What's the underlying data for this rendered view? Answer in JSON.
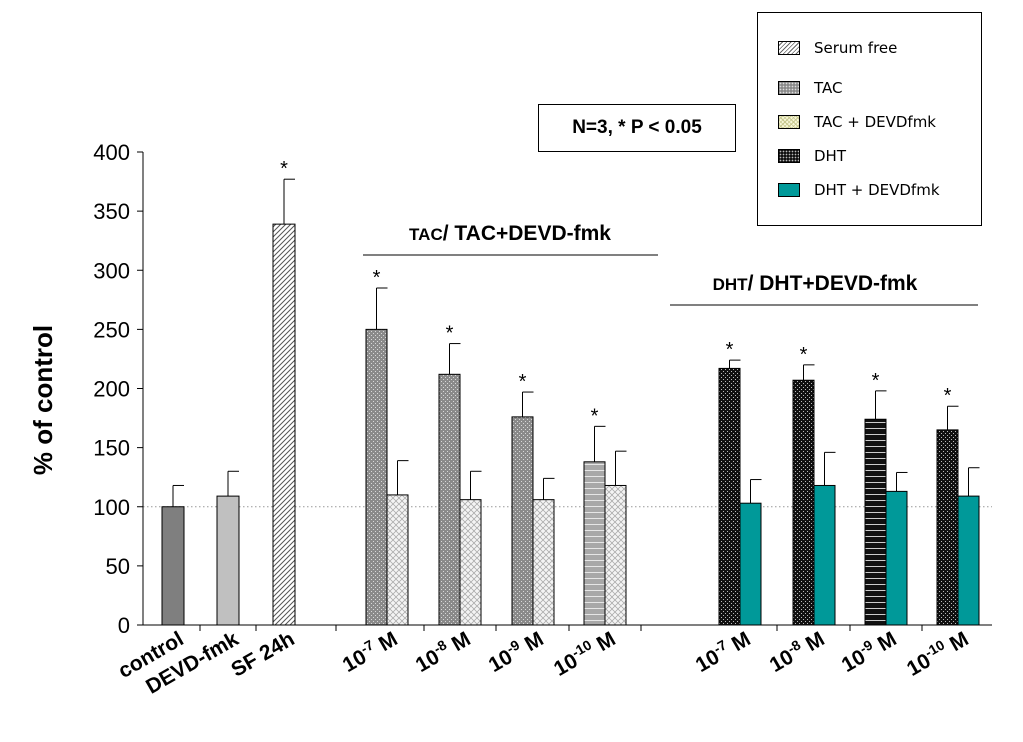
{
  "chart_data": {
    "type": "bar",
    "ylabel": "% of control",
    "ylim": [
      0,
      400
    ],
    "yticks": [
      0,
      50,
      100,
      150,
      200,
      250,
      300,
      350,
      400
    ],
    "reference_line": 100,
    "grid": false,
    "legend_position": "top-right",
    "annotation": "N=3, * P < 0.05",
    "group_labels": [
      {
        "small": "TAC",
        "rest": "/ TAC+DEVD-fmk"
      },
      {
        "small": "DHT",
        "rest": "/ DHT+DEVD-fmk"
      }
    ],
    "legend": [
      {
        "label": "Serum free",
        "pattern": "hatch"
      },
      {
        "label": "TAC",
        "pattern": "dots_gray"
      },
      {
        "label": "TAC + DEVDfmk",
        "pattern": "weave_yellow"
      },
      {
        "label": "DHT",
        "pattern": "dots_black"
      },
      {
        "label": "DHT + DEVDfmk",
        "pattern": "teal"
      }
    ],
    "categories": [
      {
        "base": "control",
        "exp": ""
      },
      {
        "base": "DEVD-fmk",
        "exp": ""
      },
      {
        "base": "SF 24h",
        "exp": ""
      },
      {
        "base": "10",
        "exp": "-7",
        "unit": " M"
      },
      {
        "base": "10",
        "exp": "-8",
        "unit": " M"
      },
      {
        "base": "10",
        "exp": "-9",
        "unit": " M"
      },
      {
        "base": "10",
        "exp": "-10",
        "unit": " M"
      },
      {
        "base": "10",
        "exp": "-7",
        "unit": " M"
      },
      {
        "base": "10",
        "exp": "-8",
        "unit": " M"
      },
      {
        "base": "10",
        "exp": "-9",
        "unit": " M"
      },
      {
        "base": "10",
        "exp": "-10",
        "unit": " M"
      }
    ],
    "bars": [
      {
        "cat": 0,
        "slot": "single",
        "series": "control",
        "value": 100,
        "error": 18,
        "sig": false
      },
      {
        "cat": 1,
        "slot": "single",
        "series": "DEVD-fmk",
        "value": 109,
        "error": 21,
        "sig": false
      },
      {
        "cat": 2,
        "slot": "single",
        "series": "Serum free",
        "value": 339,
        "error": 38,
        "sig": true
      },
      {
        "cat": 3,
        "slot": "left",
        "series": "TAC",
        "value": 250,
        "error": 35,
        "sig": true
      },
      {
        "cat": 3,
        "slot": "right",
        "series": "TAC + DEVDfmk",
        "value": 110,
        "error": 29,
        "sig": false
      },
      {
        "cat": 4,
        "slot": "left",
        "series": "TAC",
        "value": 212,
        "error": 26,
        "sig": true
      },
      {
        "cat": 4,
        "slot": "right",
        "series": "TAC + DEVDfmk",
        "value": 106,
        "error": 24,
        "sig": false
      },
      {
        "cat": 5,
        "slot": "left",
        "series": "TAC",
        "value": 176,
        "error": 21,
        "sig": true
      },
      {
        "cat": 5,
        "slot": "right",
        "series": "TAC + DEVDfmk",
        "value": 106,
        "error": 18,
        "sig": false
      },
      {
        "cat": 6,
        "slot": "left",
        "series": "TAC",
        "value": 138,
        "error": 30,
        "sig": true
      },
      {
        "cat": 6,
        "slot": "right",
        "series": "TAC + DEVDfmk",
        "value": 118,
        "error": 29,
        "sig": false
      },
      {
        "cat": 7,
        "slot": "left",
        "series": "DHT",
        "value": 217,
        "error": 7,
        "sig": true
      },
      {
        "cat": 7,
        "slot": "right",
        "series": "DHT + DEVDfmk",
        "value": 103,
        "error": 20,
        "sig": false
      },
      {
        "cat": 8,
        "slot": "left",
        "series": "DHT",
        "value": 207,
        "error": 13,
        "sig": true
      },
      {
        "cat": 8,
        "slot": "right",
        "series": "DHT + DEVDfmk",
        "value": 118,
        "error": 28,
        "sig": false
      },
      {
        "cat": 9,
        "slot": "left",
        "series": "DHT",
        "value": 174,
        "error": 24,
        "sig": true
      },
      {
        "cat": 9,
        "slot": "right",
        "series": "DHT + DEVDfmk",
        "value": 113,
        "error": 16,
        "sig": false
      },
      {
        "cat": 10,
        "slot": "left",
        "series": "DHT",
        "value": 165,
        "error": 20,
        "sig": true
      },
      {
        "cat": 10,
        "slot": "right",
        "series": "DHT + DEVDfmk",
        "value": 109,
        "error": 24,
        "sig": false
      }
    ],
    "significance_marker": "*",
    "colors": {
      "control": "#7f7f7f",
      "DEVD-fmk": "#c0c0c0",
      "teal": "#009999",
      "axis": "#000000",
      "reference_line": "#999999"
    }
  }
}
